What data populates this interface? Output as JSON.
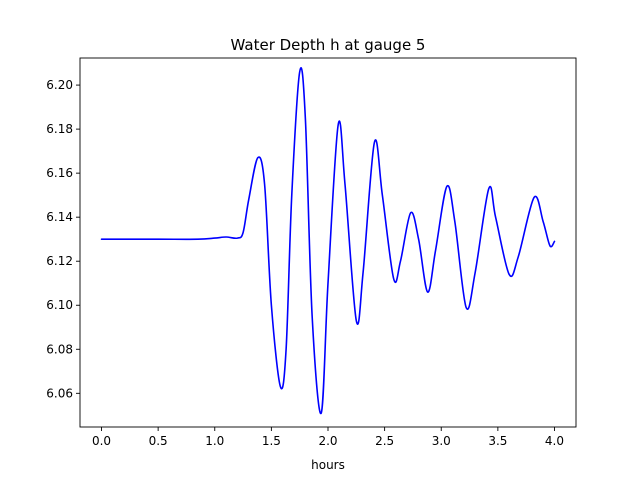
{
  "chart_data": {
    "type": "line",
    "title": "Water Depth h at gauge 5",
    "xlabel": "hours",
    "ylabel": "",
    "xlim": [
      -0.19,
      4.19
    ],
    "ylim": [
      6.0447,
      6.2123
    ],
    "xticks": [
      0.0,
      0.5,
      1.0,
      1.5,
      2.0,
      2.5,
      3.0,
      3.5,
      4.0
    ],
    "xtick_labels": [
      "0.0",
      "0.5",
      "1.0",
      "1.5",
      "2.0",
      "2.5",
      "3.0",
      "3.5",
      "4.0"
    ],
    "yticks": [
      6.06,
      6.08,
      6.1,
      6.12,
      6.14,
      6.16,
      6.18,
      6.2
    ],
    "ytick_labels": [
      "6.06",
      "6.08",
      "6.10",
      "6.12",
      "6.14",
      "6.16",
      "6.18",
      "6.20"
    ],
    "grid": false,
    "legend": false,
    "series": [
      {
        "color": "#0000ff",
        "points": [
          [
            0.0,
            6.13
          ],
          [
            0.5,
            6.13
          ],
          [
            0.85,
            6.13
          ],
          [
            1.0,
            6.1305
          ],
          [
            1.1,
            6.131
          ],
          [
            1.2,
            6.1305
          ],
          [
            1.25,
            6.133
          ],
          [
            1.3,
            6.148
          ],
          [
            1.38,
            6.167
          ],
          [
            1.44,
            6.155
          ],
          [
            1.5,
            6.1
          ],
          [
            1.58,
            6.063
          ],
          [
            1.63,
            6.08
          ],
          [
            1.68,
            6.15
          ],
          [
            1.75,
            6.206
          ],
          [
            1.8,
            6.185
          ],
          [
            1.86,
            6.095
          ],
          [
            1.94,
            6.051
          ],
          [
            2.0,
            6.11
          ],
          [
            2.09,
            6.182
          ],
          [
            2.15,
            6.155
          ],
          [
            2.25,
            6.093
          ],
          [
            2.31,
            6.115
          ],
          [
            2.41,
            6.174
          ],
          [
            2.48,
            6.15
          ],
          [
            2.58,
            6.112
          ],
          [
            2.64,
            6.12
          ],
          [
            2.73,
            6.142
          ],
          [
            2.8,
            6.13
          ],
          [
            2.88,
            6.106
          ],
          [
            2.95,
            6.125
          ],
          [
            3.05,
            6.154
          ],
          [
            3.12,
            6.138
          ],
          [
            3.22,
            6.099
          ],
          [
            3.3,
            6.115
          ],
          [
            3.42,
            6.153
          ],
          [
            3.48,
            6.14
          ],
          [
            3.6,
            6.114
          ],
          [
            3.68,
            6.122
          ],
          [
            3.82,
            6.149
          ],
          [
            3.9,
            6.138
          ],
          [
            3.96,
            6.127
          ],
          [
            4.0,
            6.129
          ]
        ]
      }
    ]
  }
}
